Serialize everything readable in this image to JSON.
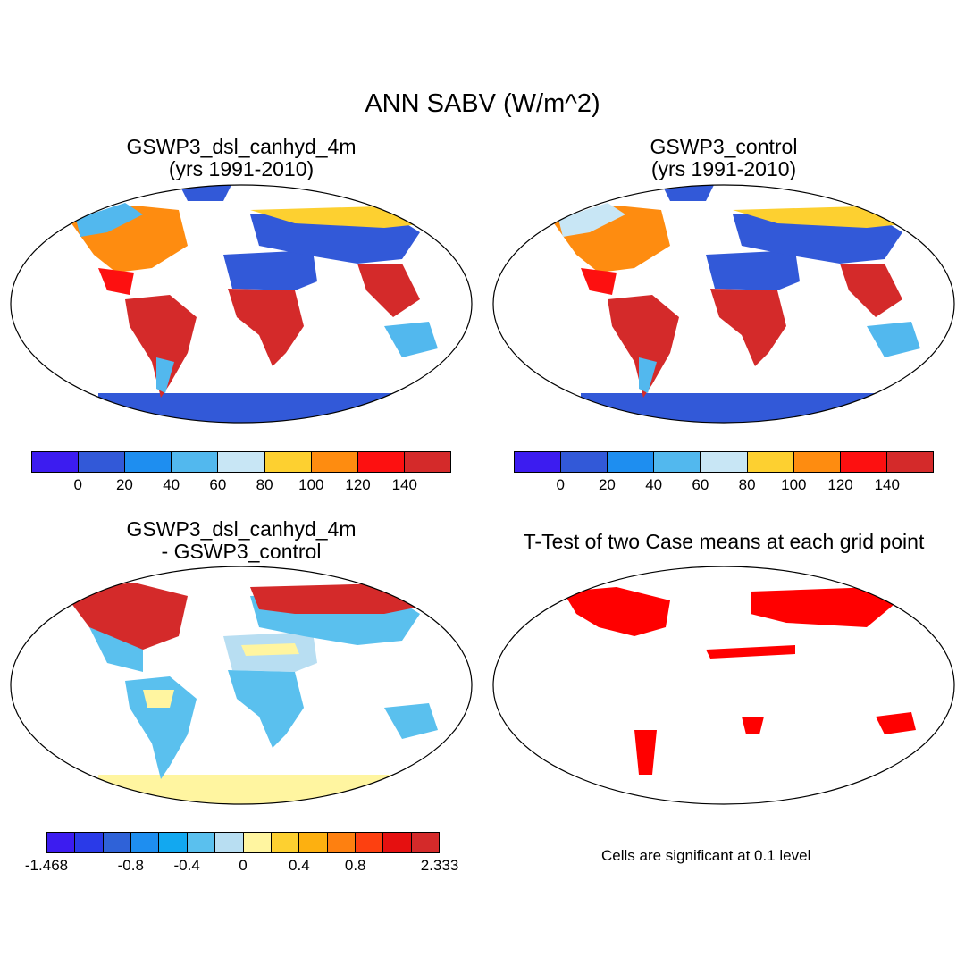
{
  "title": "ANN SABV (W/m^2)",
  "panels": [
    {
      "title_line1": "GSWP3_dsl_canhyd_4m",
      "title_line2": "(yrs 1991-2010)"
    },
    {
      "title_line1": "GSWP3_control",
      "title_line2": "(yrs 1991-2010)"
    },
    {
      "title_line1": "GSWP3_dsl_canhyd_4m",
      "title_line2": "- GSWP3_control"
    },
    {
      "title_line1": "T-Test of two Case means at each grid point",
      "title_line2": ""
    }
  ],
  "colorbar_abs": {
    "labels": [
      "0",
      "20",
      "40",
      "60",
      "80",
      "100",
      "120",
      "140"
    ],
    "colors": [
      "#3c1cf0",
      "#3259d8",
      "#1e8ef0",
      "#52b8ee",
      "#c8e6f5",
      "#fdd030",
      "#fe8c10",
      "#fd1010",
      "#d42a2a"
    ]
  },
  "colorbar_diff": {
    "labels": [
      "-1.468",
      "-0.8",
      "-0.4",
      "0",
      "0.4",
      "0.8",
      "2.333"
    ],
    "colors": [
      "#3c1cf0",
      "#2a3ae8",
      "#2f62d8",
      "#1e8ef0",
      "#12a8f0",
      "#5ac0ee",
      "#b8def2",
      "#fff5a0",
      "#fdd030",
      "#fdb010",
      "#fe8010",
      "#fd4010",
      "#e51010",
      "#d42a2a"
    ]
  },
  "significance_note": "Cells are significant at 0.1 level",
  "significance_color": "#ff0000"
}
